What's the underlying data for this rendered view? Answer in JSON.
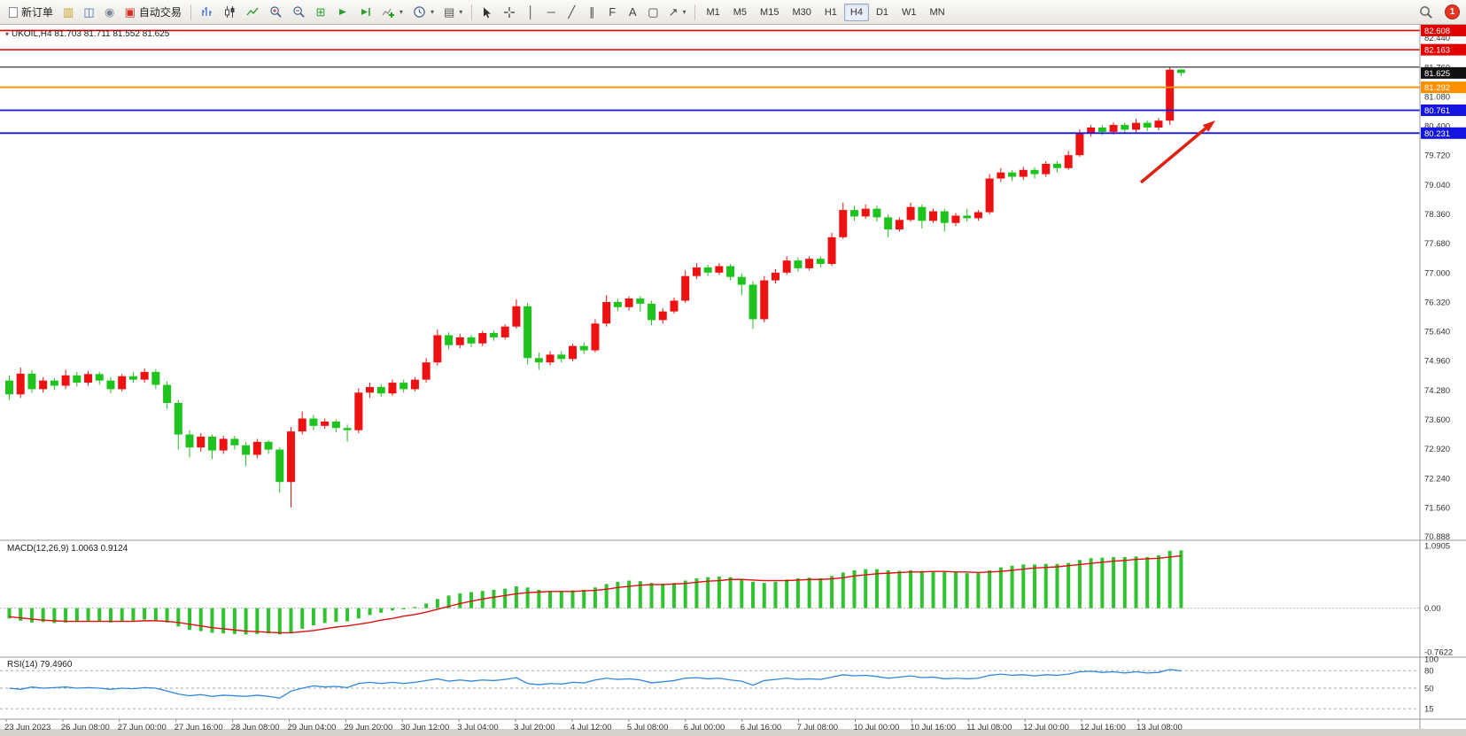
{
  "toolbar": {
    "new_order_label": "新订单",
    "autotrading_label": "自动交易",
    "timeframes": [
      "M1",
      "M5",
      "M15",
      "M30",
      "H1",
      "H4",
      "D1",
      "W1",
      "MN"
    ],
    "active_timeframe": "H4",
    "notification_count": "1"
  },
  "chart": {
    "symbol_info": "UKOIL,H4 81.703 81.711 81.552 81.625",
    "current_price": "81.625",
    "colors": {
      "up": "#ee1111",
      "down": "#1ec31e",
      "macd_hist": "#2fc42f",
      "macd_signal": "#e01010",
      "rsi_line": "#2e86de",
      "arrow": "#dd2211",
      "scale_text": "#333333"
    },
    "levels": [
      {
        "price": 82.608,
        "color": "#e00000",
        "width": 1.6
      },
      {
        "price": 82.163,
        "color": "#e00000",
        "width": 1.6
      },
      {
        "price": 81.76,
        "color": "#3a3a3a",
        "width": 1.2
      },
      {
        "price": 81.292,
        "color": "#ff9000",
        "width": 1.8
      },
      {
        "price": 80.761,
        "color": "#1515e0",
        "width": 1.8
      },
      {
        "price": 80.231,
        "color": "#1515e0",
        "width": 1.8
      }
    ],
    "price_scale": {
      "ticks": [
        "82.440",
        "81.760",
        "81.080",
        "80.400",
        "79.720",
        "79.040",
        "78.360",
        "77.680",
        "77.000",
        "76.320",
        "75.640",
        "74.960",
        "74.280",
        "73.600",
        "72.920",
        "72.240",
        "71.560",
        "70.888"
      ],
      "badges": [
        {
          "price": 82.608,
          "label": "82.608",
          "color": "#e00000"
        },
        {
          "price": 82.163,
          "label": "82.163",
          "color": "#e00000"
        },
        {
          "price": 81.625,
          "label": "81.625",
          "color": "#111111"
        },
        {
          "price": 81.292,
          "label": "81.292",
          "color": "#ff9000"
        },
        {
          "price": 80.761,
          "label": "80.761",
          "color": "#1515e0"
        },
        {
          "price": 80.231,
          "label": "80.231",
          "color": "#1515e0"
        }
      ]
    },
    "candles": [
      [
        74.5,
        74.62,
        74.05,
        74.18
      ],
      [
        74.18,
        74.8,
        74.1,
        74.66
      ],
      [
        74.66,
        74.74,
        74.22,
        74.3
      ],
      [
        74.3,
        74.58,
        74.22,
        74.5
      ],
      [
        74.5,
        74.56,
        74.28,
        74.38
      ],
      [
        74.38,
        74.75,
        74.3,
        74.62
      ],
      [
        74.62,
        74.7,
        74.36,
        74.45
      ],
      [
        74.45,
        74.72,
        74.38,
        74.65
      ],
      [
        74.65,
        74.7,
        74.4,
        74.5
      ],
      [
        74.5,
        74.58,
        74.2,
        74.3
      ],
      [
        74.3,
        74.65,
        74.25,
        74.6
      ],
      [
        74.6,
        74.7,
        74.45,
        74.52
      ],
      [
        74.52,
        74.78,
        74.45,
        74.7
      ],
      [
        74.7,
        74.76,
        74.3,
        74.4
      ],
      [
        74.4,
        74.48,
        73.85,
        73.98
      ],
      [
        73.98,
        74.05,
        72.9,
        73.25
      ],
      [
        73.25,
        73.35,
        72.72,
        72.95
      ],
      [
        72.95,
        73.28,
        72.85,
        73.2
      ],
      [
        73.2,
        73.25,
        72.68,
        72.88
      ],
      [
        72.88,
        73.22,
        72.8,
        73.15
      ],
      [
        73.15,
        73.22,
        72.9,
        73.0
      ],
      [
        73.0,
        73.08,
        72.52,
        72.78
      ],
      [
        72.78,
        73.15,
        72.7,
        73.08
      ],
      [
        73.08,
        73.12,
        72.8,
        72.9
      ],
      [
        72.9,
        72.95,
        71.9,
        72.15
      ],
      [
        72.15,
        73.42,
        71.56,
        73.32
      ],
      [
        73.32,
        73.78,
        73.25,
        73.62
      ],
      [
        73.62,
        73.7,
        73.35,
        73.45
      ],
      [
        73.45,
        73.62,
        73.38,
        73.55
      ],
      [
        73.55,
        73.6,
        73.3,
        73.4
      ],
      [
        73.4,
        73.48,
        73.08,
        73.35
      ],
      [
        73.35,
        74.32,
        73.28,
        74.22
      ],
      [
        74.22,
        74.45,
        74.1,
        74.35
      ],
      [
        74.35,
        74.42,
        74.12,
        74.2
      ],
      [
        74.2,
        74.52,
        74.15,
        74.45
      ],
      [
        74.45,
        74.52,
        74.22,
        74.3
      ],
      [
        74.3,
        74.58,
        74.25,
        74.52
      ],
      [
        74.52,
        75.02,
        74.45,
        74.92
      ],
      [
        74.92,
        75.68,
        74.85,
        75.55
      ],
      [
        75.55,
        75.62,
        75.22,
        75.32
      ],
      [
        75.32,
        75.58,
        75.25,
        75.5
      ],
      [
        75.5,
        75.56,
        75.28,
        75.36
      ],
      [
        75.36,
        75.65,
        75.3,
        75.6
      ],
      [
        75.6,
        75.66,
        75.42,
        75.5
      ],
      [
        75.5,
        75.8,
        75.45,
        75.75
      ],
      [
        75.75,
        76.38,
        75.7,
        76.22
      ],
      [
        76.22,
        76.3,
        74.88,
        75.02
      ],
      [
        75.02,
        75.15,
        74.75,
        74.92
      ],
      [
        74.92,
        75.18,
        74.85,
        75.1
      ],
      [
        75.1,
        75.18,
        74.92,
        75.0
      ],
      [
        75.0,
        75.35,
        74.95,
        75.3
      ],
      [
        75.3,
        75.38,
        75.12,
        75.2
      ],
      [
        75.2,
        75.92,
        75.15,
        75.82
      ],
      [
        75.82,
        76.48,
        75.75,
        76.32
      ],
      [
        76.32,
        76.4,
        76.1,
        76.2
      ],
      [
        76.2,
        76.45,
        76.12,
        76.4
      ],
      [
        76.4,
        76.46,
        76.1,
        76.28
      ],
      [
        76.28,
        76.35,
        75.78,
        75.9
      ],
      [
        75.9,
        76.18,
        75.82,
        76.1
      ],
      [
        76.1,
        76.42,
        76.05,
        76.35
      ],
      [
        76.35,
        77.05,
        76.3,
        76.92
      ],
      [
        76.92,
        77.22,
        76.85,
        77.12
      ],
      [
        77.12,
        77.18,
        76.92,
        77.0
      ],
      [
        77.0,
        77.22,
        76.95,
        77.15
      ],
      [
        77.15,
        77.2,
        76.82,
        76.9
      ],
      [
        76.9,
        76.98,
        76.48,
        76.72
      ],
      [
        76.72,
        76.8,
        75.7,
        75.92
      ],
      [
        75.92,
        76.92,
        75.85,
        76.82
      ],
      [
        76.82,
        77.08,
        76.75,
        77.0
      ],
      [
        77.0,
        77.38,
        76.95,
        77.28
      ],
      [
        77.28,
        77.35,
        77.02,
        77.1
      ],
      [
        77.1,
        77.38,
        77.05,
        77.32
      ],
      [
        77.32,
        77.38,
        77.12,
        77.2
      ],
      [
        77.2,
        77.92,
        77.15,
        77.82
      ],
      [
        77.82,
        78.62,
        77.78,
        78.45
      ],
      [
        78.45,
        78.55,
        78.2,
        78.3
      ],
      [
        78.3,
        78.58,
        78.25,
        78.48
      ],
      [
        78.48,
        78.55,
        78.18,
        78.28
      ],
      [
        78.28,
        78.35,
        77.82,
        78.0
      ],
      [
        78.0,
        78.28,
        77.95,
        78.22
      ],
      [
        78.22,
        78.62,
        78.18,
        78.52
      ],
      [
        78.52,
        78.58,
        78.02,
        78.2
      ],
      [
        78.2,
        78.48,
        78.15,
        78.42
      ],
      [
        78.42,
        78.48,
        77.95,
        78.15
      ],
      [
        78.15,
        78.38,
        78.08,
        78.32
      ],
      [
        78.32,
        78.48,
        78.18,
        78.26
      ],
      [
        78.26,
        78.45,
        78.2,
        78.4
      ],
      [
        78.4,
        79.28,
        78.35,
        79.18
      ],
      [
        79.18,
        79.42,
        79.1,
        79.32
      ],
      [
        79.32,
        79.38,
        79.12,
        79.22
      ],
      [
        79.22,
        79.45,
        79.15,
        79.38
      ],
      [
        79.38,
        79.44,
        79.18,
        79.28
      ],
      [
        79.28,
        79.58,
        79.22,
        79.52
      ],
      [
        79.52,
        79.58,
        79.32,
        79.42
      ],
      [
        79.42,
        79.82,
        79.38,
        79.72
      ],
      [
        79.72,
        80.32,
        79.68,
        80.22
      ],
      [
        80.22,
        80.42,
        80.15,
        80.36
      ],
      [
        80.36,
        80.42,
        80.18,
        80.26
      ],
      [
        80.26,
        80.48,
        80.2,
        80.42
      ],
      [
        80.42,
        80.48,
        80.22,
        80.31
      ],
      [
        80.31,
        80.56,
        80.25,
        80.47
      ],
      [
        80.47,
        80.52,
        80.28,
        80.36
      ],
      [
        80.36,
        80.58,
        80.3,
        80.52
      ],
      [
        80.52,
        81.76,
        80.42,
        81.7
      ],
      [
        81.703,
        81.711,
        81.552,
        81.625
      ]
    ],
    "macd": {
      "title": "MACD(12,26,9) 1.0063 0.9124",
      "range": [
        -0.7622,
        1.0905
      ],
      "scale": [
        {
          "v": 1.0905,
          "t": "1.0905"
        },
        {
          "v": 0,
          "t": "0.00"
        },
        {
          "v": -0.7622,
          "t": "-0.7622"
        }
      ],
      "hist": [
        -0.18,
        -0.22,
        -0.25,
        -0.24,
        -0.26,
        -0.25,
        -0.24,
        -0.22,
        -0.23,
        -0.25,
        -0.24,
        -0.22,
        -0.2,
        -0.21,
        -0.25,
        -0.32,
        -0.38,
        -0.4,
        -0.43,
        -0.44,
        -0.45,
        -0.46,
        -0.45,
        -0.44,
        -0.46,
        -0.42,
        -0.36,
        -0.3,
        -0.26,
        -0.24,
        -0.23,
        -0.18,
        -0.12,
        -0.08,
        -0.04,
        -0.02,
        0.02,
        0.08,
        0.16,
        0.22,
        0.26,
        0.28,
        0.3,
        0.32,
        0.34,
        0.38,
        0.36,
        0.32,
        0.3,
        0.3,
        0.31,
        0.32,
        0.36,
        0.42,
        0.46,
        0.48,
        0.47,
        0.44,
        0.43,
        0.44,
        0.48,
        0.52,
        0.54,
        0.55,
        0.54,
        0.51,
        0.46,
        0.44,
        0.46,
        0.5,
        0.52,
        0.53,
        0.52,
        0.56,
        0.62,
        0.66,
        0.68,
        0.68,
        0.66,
        0.65,
        0.66,
        0.65,
        0.65,
        0.63,
        0.62,
        0.61,
        0.61,
        0.66,
        0.71,
        0.74,
        0.76,
        0.76,
        0.77,
        0.77,
        0.79,
        0.84,
        0.87,
        0.88,
        0.89,
        0.89,
        0.9,
        0.89,
        0.92,
        1.0,
        1.0063
      ],
      "signal": [
        -0.15,
        -0.17,
        -0.19,
        -0.21,
        -0.22,
        -0.23,
        -0.23,
        -0.23,
        -0.23,
        -0.23,
        -0.23,
        -0.23,
        -0.22,
        -0.22,
        -0.23,
        -0.25,
        -0.28,
        -0.31,
        -0.34,
        -0.36,
        -0.38,
        -0.4,
        -0.41,
        -0.42,
        -0.43,
        -0.43,
        -0.41,
        -0.39,
        -0.36,
        -0.33,
        -0.31,
        -0.28,
        -0.25,
        -0.21,
        -0.18,
        -0.14,
        -0.11,
        -0.07,
        -0.02,
        0.03,
        0.08,
        0.12,
        0.16,
        0.19,
        0.22,
        0.25,
        0.27,
        0.28,
        0.29,
        0.29,
        0.29,
        0.3,
        0.31,
        0.33,
        0.36,
        0.38,
        0.4,
        0.41,
        0.41,
        0.42,
        0.43,
        0.45,
        0.47,
        0.48,
        0.5,
        0.5,
        0.49,
        0.48,
        0.48,
        0.48,
        0.49,
        0.5,
        0.5,
        0.51,
        0.53,
        0.56,
        0.58,
        0.6,
        0.61,
        0.62,
        0.63,
        0.63,
        0.64,
        0.64,
        0.63,
        0.63,
        0.62,
        0.63,
        0.64,
        0.66,
        0.68,
        0.7,
        0.71,
        0.72,
        0.74,
        0.76,
        0.78,
        0.8,
        0.82,
        0.83,
        0.85,
        0.86,
        0.87,
        0.89,
        0.9124
      ]
    },
    "rsi": {
      "title": "RSI(14) 79.4960",
      "range": [
        0,
        100
      ],
      "levels": [
        80,
        50,
        15
      ],
      "scale": [
        {
          "v": 100,
          "t": "100"
        },
        {
          "v": 80,
          "t": "80"
        },
        {
          "v": 50,
          "t": "50"
        },
        {
          "v": 15,
          "t": "15"
        }
      ],
      "values": [
        50,
        48,
        52,
        50,
        51,
        52,
        50,
        51,
        50,
        48,
        50,
        49,
        51,
        50,
        45,
        40,
        37,
        39,
        36,
        38,
        37,
        36,
        38,
        36,
        33,
        45,
        50,
        54,
        52,
        53,
        51,
        58,
        60,
        58,
        60,
        58,
        60,
        63,
        66,
        62,
        64,
        62,
        64,
        63,
        65,
        68,
        58,
        56,
        58,
        57,
        60,
        59,
        64,
        67,
        65,
        66,
        64,
        59,
        61,
        63,
        67,
        68,
        66,
        67,
        64,
        62,
        55,
        63,
        65,
        67,
        65,
        66,
        65,
        69,
        73,
        71,
        72,
        70,
        67,
        69,
        71,
        68,
        69,
        66,
        67,
        66,
        67,
        72,
        74,
        72,
        73,
        71,
        73,
        72,
        74,
        78,
        79,
        77,
        78,
        76,
        78,
        76,
        77,
        82,
        79.5
      ]
    },
    "time_labels": [
      "23 Jun 2023",
      "26 Jun 08:00",
      "27 Jun 00:00",
      "27 Jun 16:00",
      "28 Jun 08:00",
      "29 Jun 04:00",
      "29 Jun 20:00",
      "30 Jun 12:00",
      "3 Jul 04:00",
      "3 Jul 20:00",
      "4 Jul 12:00",
      "5 Jul 08:00",
      "6 Jul 00:00",
      "6 Jul 16:00",
      "7 Jul 08:00",
      "10 Jul 00:00",
      "10 Jul 16:00",
      "11 Jul 08:00",
      "12 Jul 00:00",
      "12 Jul 16:00",
      "13 Jul 08:00"
    ]
  }
}
